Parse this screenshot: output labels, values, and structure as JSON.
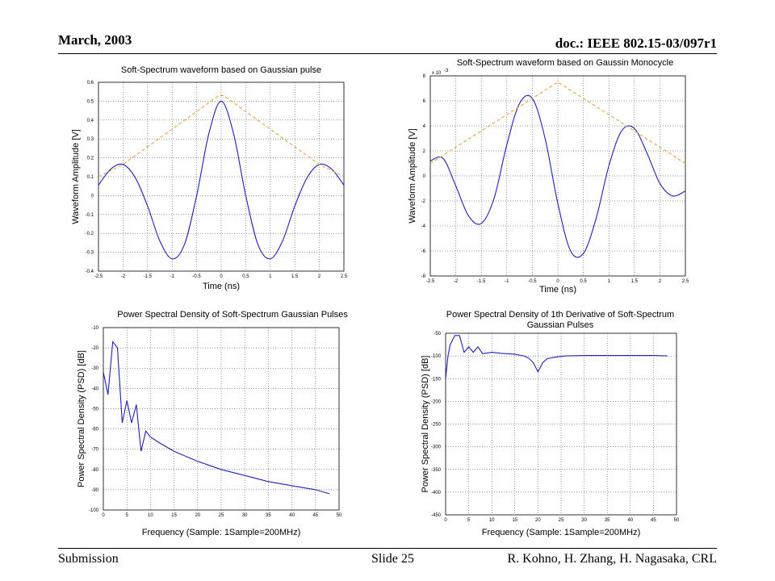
{
  "slide": {
    "date": "March, 2003",
    "doc_id": "doc.: IEEE 802.15-03/097r1",
    "footer_left": "Submission",
    "footer_center": "Slide 25",
    "footer_right": "R. Kohno, H. Zhang, H. Nagasaka, CRL"
  },
  "colors": {
    "signal": "#2020c0",
    "envelope": "#f0a040",
    "grid": "#000000"
  },
  "chart_data": [
    {
      "type": "line",
      "title": "Soft-Spectrum waveform based on Gaussian pulse",
      "xlabel": "Time (ns)",
      "ylabel": "Waveform Amplitude [V]",
      "xlim": [
        -2.5,
        2.5
      ],
      "ylim": [
        -0.4,
        0.6
      ],
      "xticks": [
        "-2.5",
        "-2",
        "-1.5",
        "-1",
        "-0.5",
        "0",
        "0.5",
        "1",
        "1.5",
        "2",
        "2.5"
      ],
      "yticks": [
        "-0.4",
        "-0.3",
        "-0.2",
        "-0.1",
        "0",
        "0.1",
        "0.2",
        "0.3",
        "0.4",
        "0.5",
        "0.6"
      ],
      "grid": true,
      "series": [
        {
          "style": "solid",
          "color": "#2020c0",
          "x": [
            -2.5,
            -2.25,
            -2.0,
            -1.75,
            -1.5,
            -1.25,
            -1.0,
            -0.75,
            -0.5,
            -0.25,
            0,
            0.25,
            0.5,
            0.75,
            1.0,
            1.25,
            1.5,
            1.75,
            2.0,
            2.25,
            2.5
          ],
          "y": [
            0.055,
            0.14,
            0.165,
            0.095,
            -0.055,
            -0.24,
            -0.335,
            -0.26,
            0.0,
            0.33,
            0.5,
            0.33,
            0.0,
            -0.26,
            -0.335,
            -0.24,
            -0.055,
            0.095,
            0.165,
            0.14,
            0.055
          ]
        },
        {
          "style": "dashed",
          "color": "#f0a040",
          "x": [
            -2.5,
            -2.0,
            -0.05,
            0.05,
            2.0,
            2.5
          ],
          "y": [
            0.1,
            0.165,
            0.53,
            0.53,
            0.165,
            0.1
          ]
        }
      ]
    },
    {
      "type": "line",
      "title": "Soft-Spectrum waveform based on Gaussin Monocycle",
      "xlabel": "Time (ns)",
      "ylabel": "Waveform Amplitude [V]",
      "scale_label": "x 10",
      "scale_exponent": "-3",
      "xlim": [
        -2.5,
        2.5
      ],
      "ylim": [
        -8,
        8
      ],
      "xticks": [
        "-2.5",
        "-2",
        "-1.5",
        "-1",
        "-0.5",
        "0",
        "0.5",
        "1",
        "1.5",
        "2",
        "2.5"
      ],
      "yticks": [
        "-8",
        "-6",
        "-4",
        "-2",
        "0",
        "2",
        "4",
        "6",
        "8"
      ],
      "grid": true,
      "series": [
        {
          "style": "solid",
          "color": "#2020c0",
          "x": [
            -2.5,
            -2.25,
            -2.0,
            -1.75,
            -1.5,
            -1.25,
            -1.0,
            -0.75,
            -0.5,
            -0.25,
            0,
            0.25,
            0.5,
            0.75,
            1.0,
            1.25,
            1.5,
            1.75,
            2.0,
            2.25,
            2.5
          ],
          "y": [
            1.2,
            1.4,
            -0.8,
            -3.2,
            -3.8,
            -1.8,
            2.5,
            5.8,
            6.2,
            3.0,
            -2.2,
            -6.0,
            -6.2,
            -3.4,
            0.8,
            3.6,
            3.8,
            1.8,
            -0.6,
            -1.6,
            -1.2
          ]
        },
        {
          "style": "dashed",
          "color": "#f0a040",
          "x": [
            -2.5,
            0.0,
            2.5
          ],
          "y": [
            1.0,
            7.5,
            1.0
          ]
        }
      ]
    },
    {
      "type": "line",
      "title": "Power Spectral Density of Soft-Spectrum Gaussian Pulses",
      "xlabel": "Frequency (Sample: 1Sample=200MHz)",
      "ylabel": "Power Spectral Density (PSD) [dB]",
      "xlim": [
        0,
        50
      ],
      "ylim": [
        -100,
        -10
      ],
      "xticks": [
        "0",
        "5",
        "10",
        "15",
        "20",
        "25",
        "30",
        "35",
        "40",
        "45",
        "50"
      ],
      "yticks": [
        "-100",
        "-90",
        "-80",
        "-70",
        "-60",
        "-50",
        "-40",
        "-30",
        "-20",
        "-10"
      ],
      "grid": true,
      "series": [
        {
          "style": "solid",
          "color": "#2020c0",
          "x": [
            0,
            1,
            2,
            3,
            4,
            5,
            6,
            7,
            8,
            9,
            10,
            12,
            15,
            20,
            25,
            30,
            35,
            40,
            45,
            48
          ],
          "y": [
            -32,
            -43,
            -17,
            -20,
            -57,
            -46,
            -57,
            -48,
            -71,
            -61,
            -64,
            -67,
            -71,
            -76,
            -80,
            -83,
            -86,
            -88,
            -90,
            -92
          ]
        }
      ]
    },
    {
      "type": "line",
      "title": "Power Spectral Density of 1th Derivative of Soft-Spectrum Gaussian Pulses",
      "xlabel": "Frequency (Sample: 1Sample=200MHz)",
      "ylabel": "Power Spectral Density (PSD) [dB]",
      "xlim": [
        0,
        50
      ],
      "ylim": [
        -450,
        -50
      ],
      "xticks": [
        "0",
        "5",
        "10",
        "15",
        "20",
        "25",
        "30",
        "35",
        "40",
        "45",
        "50"
      ],
      "yticks": [
        "-450",
        "-400",
        "-350",
        "-300",
        "-250",
        "-200",
        "-150",
        "-100",
        "-50"
      ],
      "grid": true,
      "series": [
        {
          "style": "solid",
          "color": "#2020c0",
          "x": [
            0,
            0.5,
            1,
            2,
            3,
            4,
            5,
            6,
            7,
            8,
            10,
            12,
            15,
            17,
            18,
            19,
            19.5,
            20,
            20.5,
            21,
            22,
            24,
            26,
            30,
            35,
            40,
            45,
            48
          ],
          "y": [
            -150,
            -100,
            -75,
            -55,
            -55,
            -92,
            -80,
            -92,
            -80,
            -95,
            -92,
            -94,
            -96,
            -100,
            -105,
            -115,
            -125,
            -135,
            -125,
            -115,
            -106,
            -102,
            -100,
            -99,
            -99,
            -99,
            -99,
            -100
          ]
        }
      ]
    }
  ]
}
